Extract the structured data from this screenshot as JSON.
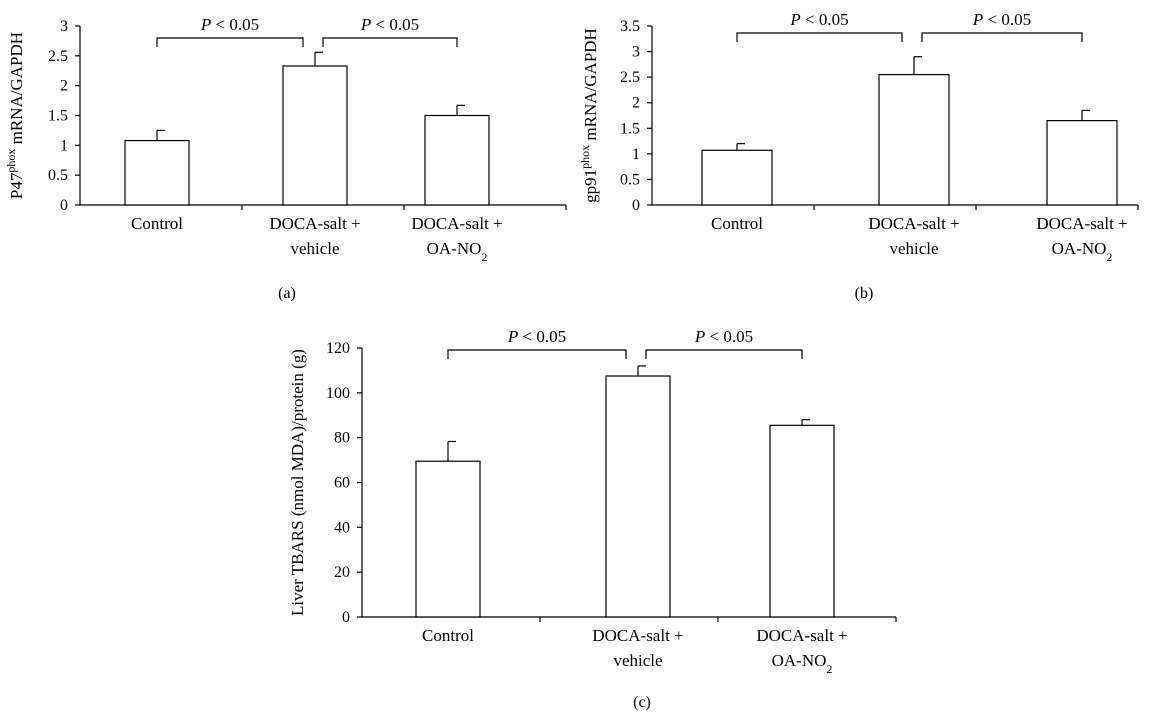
{
  "chart_data": [
    {
      "type": "bar",
      "panel_label": "(a)",
      "ylabel": {
        "base": "P47",
        "sup": "phox",
        "rest": " mRNA/GAPDH"
      },
      "ylim": [
        0,
        3
      ],
      "yticks": [
        "0",
        "0.5",
        "1",
        "1.5",
        "2",
        "2.5",
        "3"
      ],
      "categories": [
        {
          "line1": "Control"
        },
        {
          "line1": "DOCA-salt +",
          "line2": "vehicle"
        },
        {
          "line1": "DOCA-salt +",
          "line2_base": "OA-NO",
          "line2_sub": "2"
        }
      ],
      "values": [
        1.08,
        2.33,
        1.5
      ],
      "errors": [
        0.17,
        0.23,
        0.17
      ],
      "significance": [
        {
          "from": 0,
          "to": 1,
          "label_p": "P",
          "label_rest": " < 0.05"
        },
        {
          "from": 1,
          "to": 2,
          "label_p": "P",
          "label_rest": " < 0.05"
        }
      ]
    },
    {
      "type": "bar",
      "panel_label": "(b)",
      "ylabel": {
        "base": "gp91",
        "sup": "phox",
        "rest": " mRNA/GAPDH"
      },
      "ylim": [
        0,
        3.5
      ],
      "yticks": [
        "0",
        "0.5",
        "1",
        "1.5",
        "2",
        "2.5",
        "3",
        "3.5"
      ],
      "categories": [
        {
          "line1": "Control"
        },
        {
          "line1": "DOCA-salt +",
          "line2": "vehicle"
        },
        {
          "line1": "DOCA-salt +",
          "line2_base": "OA-NO",
          "line2_sub": "2"
        }
      ],
      "values": [
        1.07,
        2.55,
        1.65
      ],
      "errors": [
        0.13,
        0.35,
        0.2
      ],
      "significance": [
        {
          "from": 0,
          "to": 1,
          "label_p": "P",
          "label_rest": " < 0.05"
        },
        {
          "from": 1,
          "to": 2,
          "label_p": "P",
          "label_rest": " < 0.05"
        }
      ]
    },
    {
      "type": "bar",
      "panel_label": "(c)",
      "ylabel": {
        "base": "Liver TBARS (nmol MDA)/protein (g)"
      },
      "ylim": [
        0,
        120
      ],
      "yticks": [
        "0",
        "20",
        "40",
        "60",
        "80",
        "100",
        "120"
      ],
      "categories": [
        {
          "line1": "Control"
        },
        {
          "line1": "DOCA-salt +",
          "line2": "vehicle"
        },
        {
          "line1": "DOCA-salt +",
          "line2_base": "OA-NO",
          "line2_sub": "2"
        }
      ],
      "values": [
        69.5,
        107.5,
        85.5
      ],
      "errors": [
        8.8,
        4.5,
        2.5
      ],
      "significance": [
        {
          "from": 0,
          "to": 1,
          "label_p": "P",
          "label_rest": " < 0.05"
        },
        {
          "from": 1,
          "to": 2,
          "label_p": "P",
          "label_rest": " < 0.05"
        }
      ]
    }
  ]
}
